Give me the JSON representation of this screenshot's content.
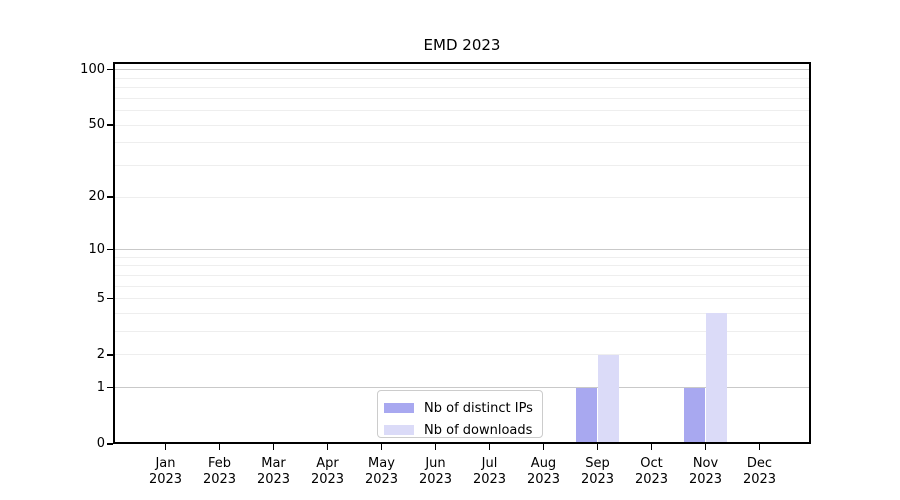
{
  "figure": {
    "title": "EMD 2023"
  },
  "chart_data": {
    "type": "bar",
    "title": "EMD 2023",
    "categories": [
      "Jan",
      "Feb",
      "Mar",
      "Apr",
      "May",
      "Jun",
      "Jul",
      "Aug",
      "Sep",
      "Oct",
      "Nov",
      "Dec"
    ],
    "category_year": "2023",
    "series": [
      {
        "name": "Nb of distinct IPs",
        "color": "#a8a8f0",
        "values": [
          0,
          0,
          0,
          0,
          0,
          0,
          0,
          0,
          1,
          0,
          1,
          0
        ]
      },
      {
        "name": "Nb of downloads",
        "color": "#dbdbf8",
        "values": [
          0,
          0,
          0,
          0,
          0,
          0,
          0,
          0,
          2,
          0,
          4,
          0
        ]
      }
    ],
    "yscale": "log10(1+v)",
    "ylim": [
      0,
      110
    ],
    "ytick_labels": [
      0,
      1,
      2,
      5,
      10,
      20,
      50,
      100
    ],
    "grid_major_values": [
      1,
      10,
      100
    ],
    "grid_minor_values": [
      2,
      3,
      4,
      5,
      6,
      7,
      8,
      9,
      20,
      30,
      40,
      50,
      60,
      70,
      80,
      90
    ],
    "grid_major_color": "#c9c9c9",
    "grid_minor_color": "#eeeeee",
    "grid": "both",
    "legend_position": "lower center",
    "background_color": "#ffffff"
  }
}
